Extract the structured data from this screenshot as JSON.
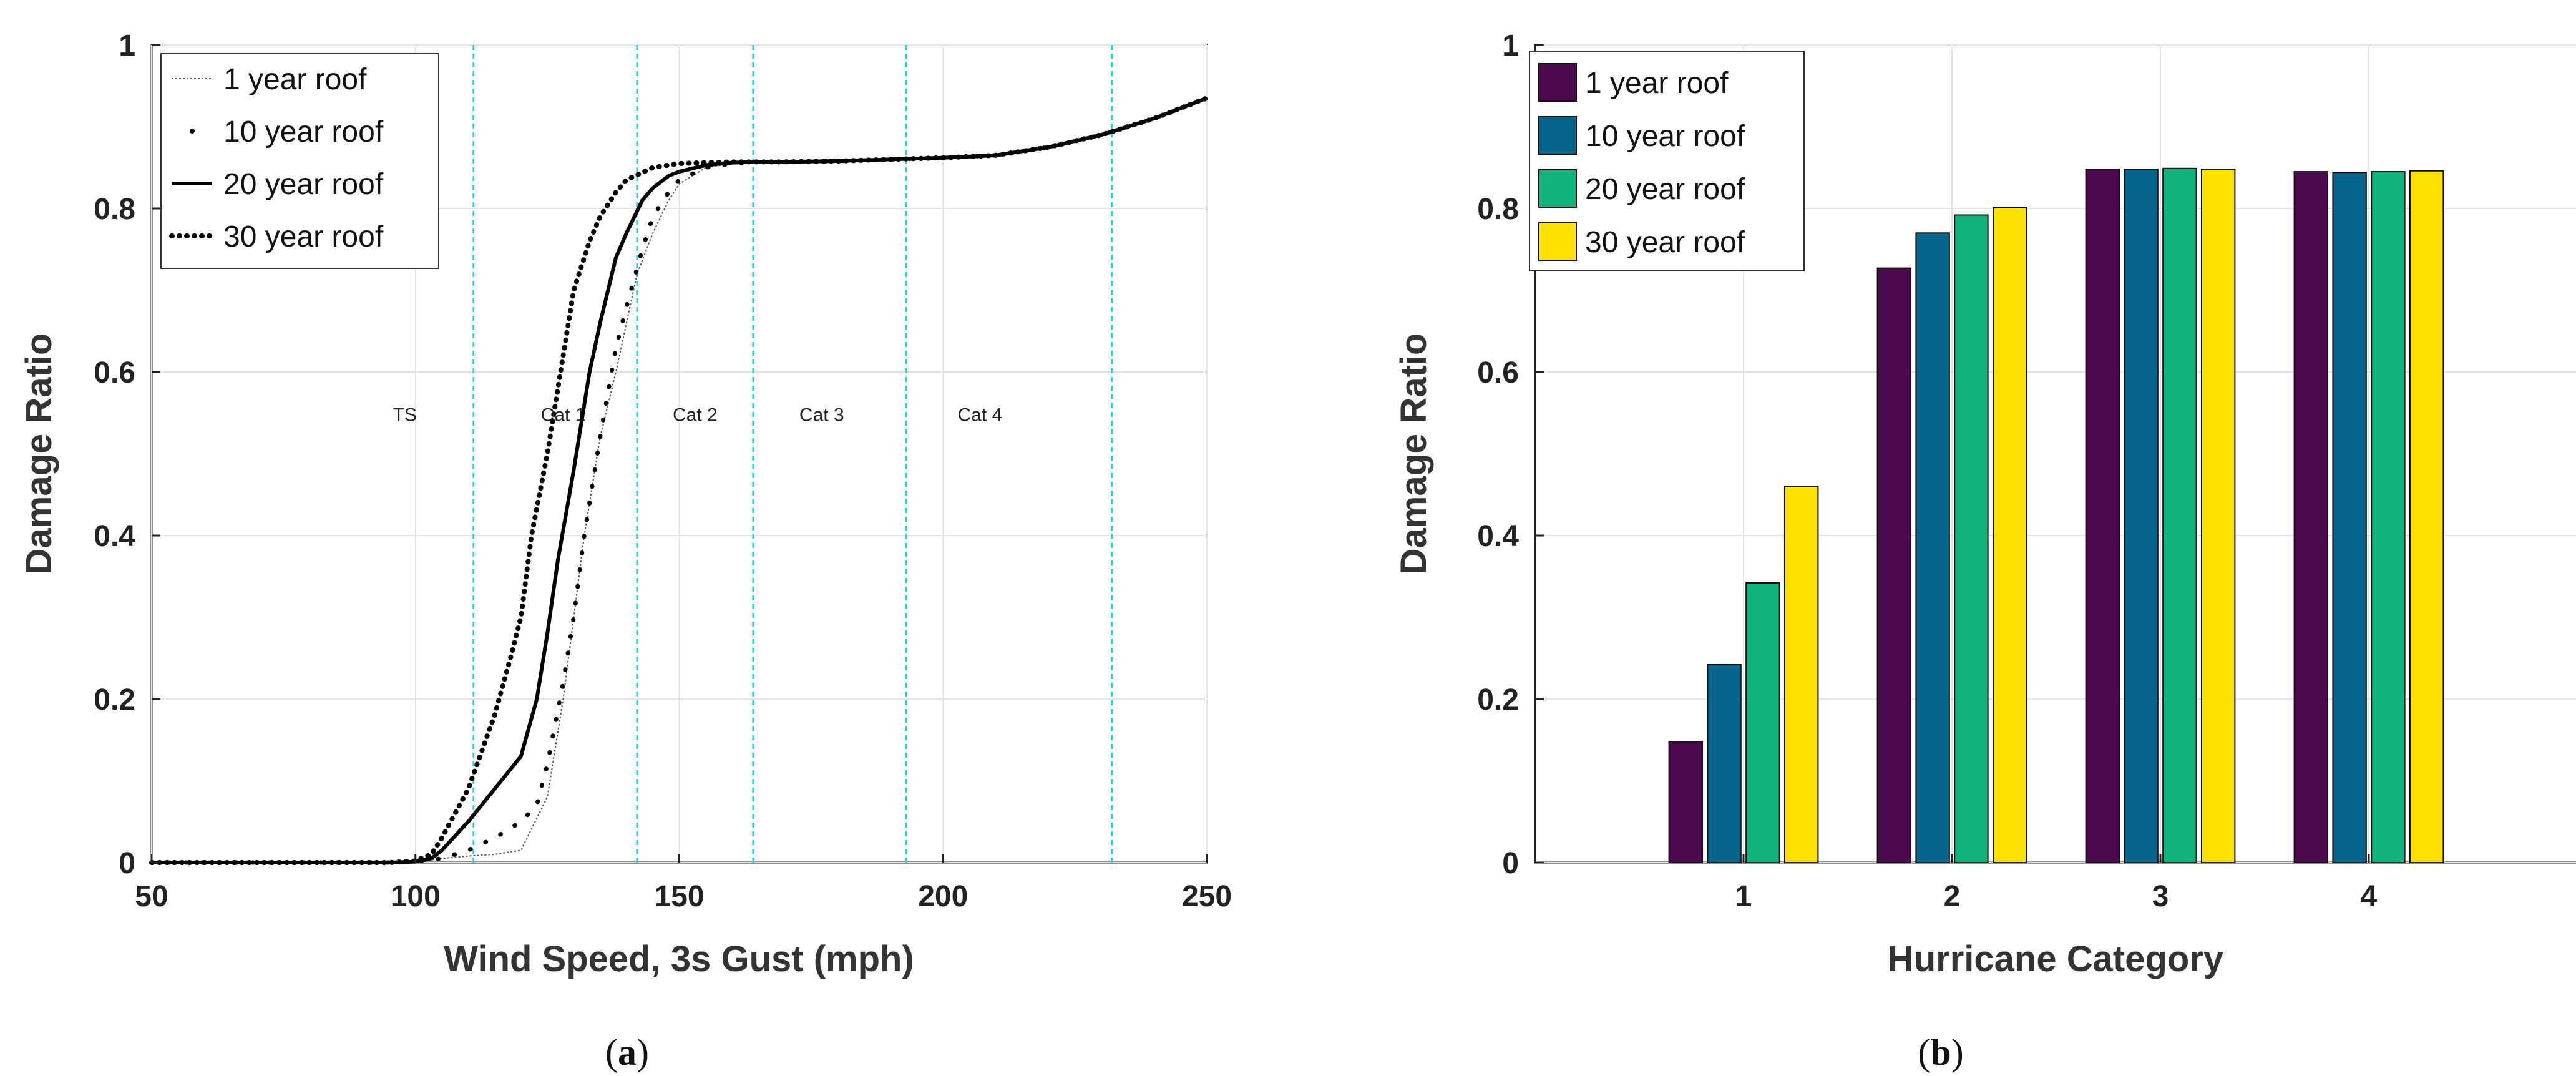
{
  "chart_data": [
    {
      "type": "line",
      "panel_label": "a",
      "xlabel": "Wind Speed, 3s Gust (mph)",
      "ylabel": "Damage Ratio",
      "xlim": [
        50,
        250
      ],
      "ylim": [
        0,
        1
      ],
      "xticks": [
        50,
        100,
        150,
        200,
        250
      ],
      "yticks": [
        0,
        0.2,
        0.4,
        0.6,
        0.8,
        1
      ],
      "ytick_labels": [
        "0",
        "0.2",
        "0.4",
        "0.6",
        "0.8",
        "1"
      ],
      "grid": true,
      "legend_position": "top-left",
      "category_boundaries": [
        111,
        142,
        164,
        193,
        232
      ],
      "boundary_color": "#22d3ee",
      "regions": [
        {
          "label": "TS",
          "x": 98,
          "y": 0.54
        },
        {
          "label": "Cat 1",
          "x": 128,
          "y": 0.54
        },
        {
          "label": "Cat 2",
          "x": 153,
          "y": 0.54
        },
        {
          "label": "Cat 3",
          "x": 177,
          "y": 0.54
        },
        {
          "label": "Cat 4",
          "x": 207,
          "y": 0.54
        }
      ],
      "series": [
        {
          "name": "1 year roof",
          "style": "thin-dotted",
          "x": [
            50,
            95,
            100,
            105,
            110,
            115,
            120,
            125,
            128,
            130,
            132,
            135,
            138,
            140,
            142,
            145,
            148,
            150,
            155,
            160,
            165,
            170,
            180,
            190,
            200,
            210,
            220,
            230,
            240,
            250
          ],
          "y": [
            0,
            0,
            0.001,
            0.005,
            0.008,
            0.01,
            0.015,
            0.08,
            0.2,
            0.3,
            0.4,
            0.52,
            0.6,
            0.66,
            0.72,
            0.77,
            0.81,
            0.83,
            0.85,
            0.855,
            0.857,
            0.857,
            0.858,
            0.86,
            0.862,
            0.865,
            0.875,
            0.89,
            0.91,
            0.935
          ]
        },
        {
          "name": "10 year roof",
          "style": "sparse-dots",
          "x": [
            50,
            95,
            100,
            105,
            110,
            115,
            120,
            123,
            125,
            128,
            130,
            132,
            135,
            138,
            140,
            143,
            145,
            148,
            150,
            155,
            160,
            165,
            170,
            180,
            190,
            200,
            210,
            220,
            230,
            240,
            250
          ],
          "y": [
            0,
            0,
            0.001,
            0.005,
            0.015,
            0.03,
            0.05,
            0.07,
            0.12,
            0.22,
            0.3,
            0.4,
            0.52,
            0.63,
            0.68,
            0.75,
            0.79,
            0.82,
            0.835,
            0.85,
            0.855,
            0.857,
            0.857,
            0.858,
            0.86,
            0.862,
            0.865,
            0.875,
            0.89,
            0.91,
            0.935
          ]
        },
        {
          "name": "20 year roof",
          "style": "solid",
          "x": [
            50,
            95,
            100,
            103,
            105,
            110,
            115,
            120,
            123,
            125,
            127,
            130,
            133,
            135,
            138,
            140,
            143,
            145,
            148,
            150,
            155,
            160,
            165,
            170,
            180,
            190,
            200,
            210,
            220,
            230,
            240,
            250
          ],
          "y": [
            0,
            0,
            0.001,
            0.005,
            0.015,
            0.05,
            0.09,
            0.13,
            0.2,
            0.28,
            0.37,
            0.48,
            0.6,
            0.66,
            0.74,
            0.77,
            0.81,
            0.825,
            0.84,
            0.845,
            0.853,
            0.856,
            0.857,
            0.857,
            0.858,
            0.86,
            0.862,
            0.865,
            0.875,
            0.89,
            0.91,
            0.935
          ]
        },
        {
          "name": "30 year roof",
          "style": "dense-dotted",
          "x": [
            50,
            95,
            100,
            103,
            105,
            110,
            115,
            118,
            120,
            122,
            125,
            128,
            130,
            133,
            135,
            138,
            140,
            145,
            150,
            155,
            160,
            165,
            170,
            180,
            190,
            200,
            210,
            220,
            230,
            240,
            250
          ],
          "y": [
            0,
            0,
            0.002,
            0.01,
            0.03,
            0.09,
            0.18,
            0.25,
            0.3,
            0.4,
            0.5,
            0.62,
            0.7,
            0.76,
            0.79,
            0.82,
            0.835,
            0.85,
            0.855,
            0.856,
            0.857,
            0.857,
            0.857,
            0.858,
            0.86,
            0.862,
            0.865,
            0.875,
            0.89,
            0.91,
            0.935
          ]
        }
      ]
    },
    {
      "type": "bar",
      "panel_label": "b",
      "xlabel": "Hurricane Category",
      "ylabel": "Damage Ratio",
      "categories": [
        "1",
        "2",
        "3",
        "4"
      ],
      "xlim": [
        0,
        5
      ],
      "ylim": [
        0,
        1
      ],
      "yticks": [
        0,
        0.2,
        0.4,
        0.6,
        0.8,
        1
      ],
      "ytick_labels": [
        "0",
        "0.2",
        "0.4",
        "0.6",
        "0.8",
        "1"
      ],
      "grid": true,
      "legend_position": "top-left",
      "series": [
        {
          "name": "1 year roof",
          "color": "#4b0a4e",
          "values": [
            0.148,
            0.727,
            0.848,
            0.845
          ]
        },
        {
          "name": "10 year roof",
          "color": "#05668d",
          "values": [
            0.242,
            0.77,
            0.848,
            0.844
          ]
        },
        {
          "name": "20 year roof",
          "color": "#10b47a",
          "values": [
            0.342,
            0.792,
            0.849,
            0.845
          ]
        },
        {
          "name": "30 year roof",
          "color": "#ffe100",
          "values": [
            0.46,
            0.801,
            0.848,
            0.846
          ]
        }
      ]
    }
  ],
  "captions": {
    "a": {
      "open": "(",
      "letter": "a",
      "close": ")"
    },
    "b": {
      "open": "(",
      "letter": "b",
      "close": ")"
    }
  }
}
